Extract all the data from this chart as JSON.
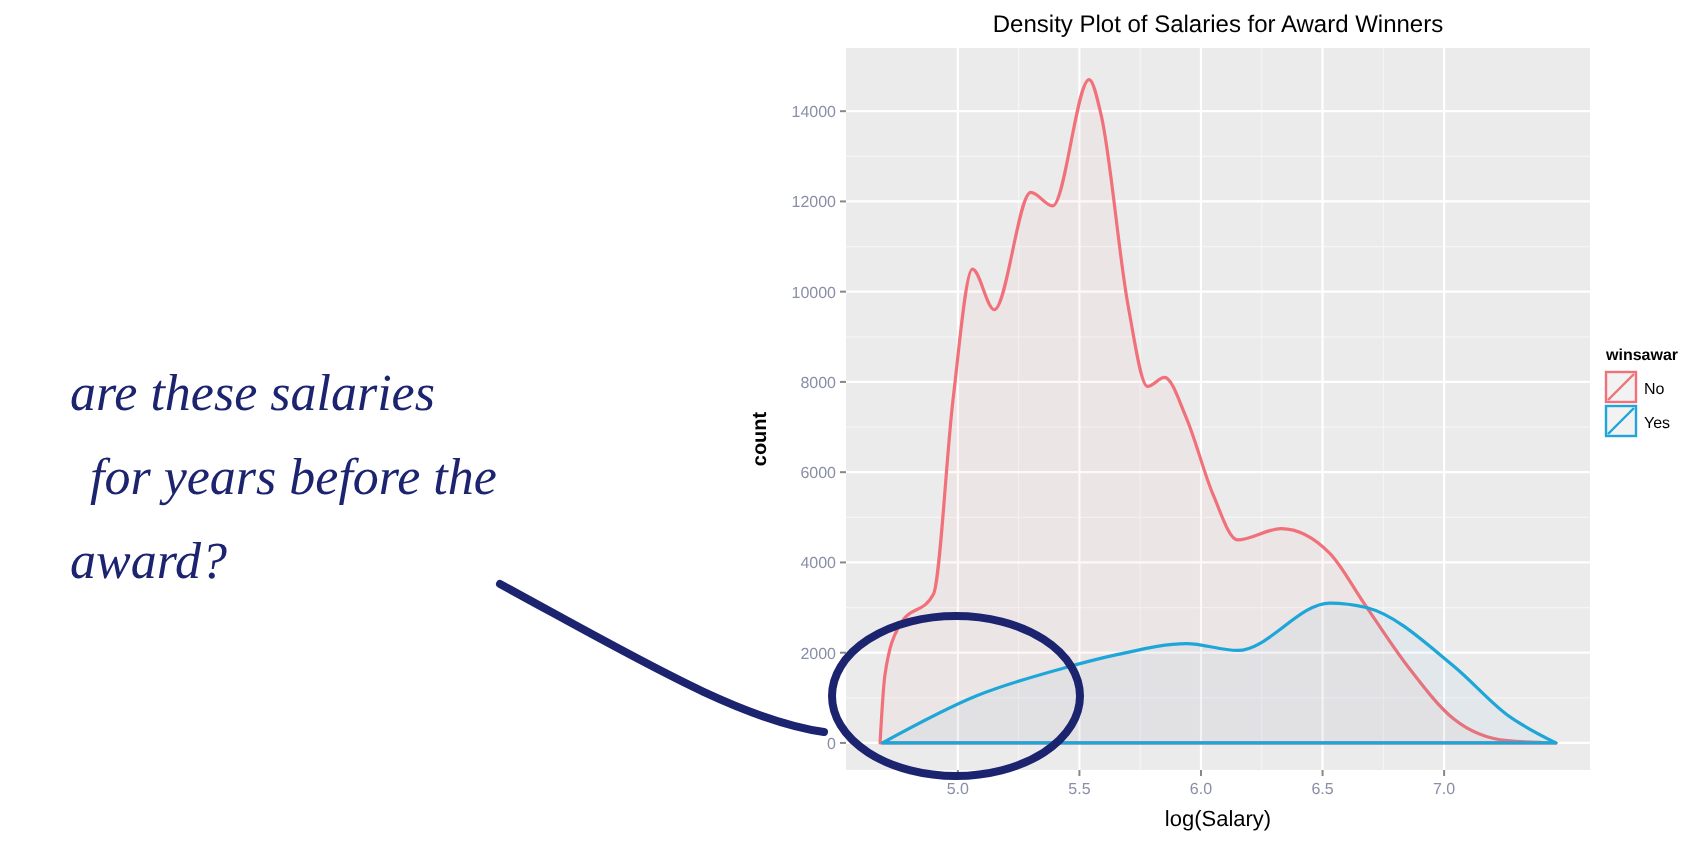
{
  "chart_data": {
    "type": "area",
    "title": "Density Plot of Salaries for Award Winners",
    "xlabel": "log(Salary)",
    "ylabel": "count",
    "legend_title": "winsawar",
    "xlim": [
      4.54,
      7.6
    ],
    "xticks": [
      {
        "value": 5,
        "label": "5.0"
      },
      {
        "value": 5.5,
        "label": "5.5"
      },
      {
        "value": 6,
        "label": "6.0"
      },
      {
        "value": 6.5,
        "label": "6.5"
      },
      {
        "value": 7,
        "label": "7.0"
      }
    ],
    "ylim": [
      -600,
      15400
    ],
    "yticks": [
      0,
      2000,
      4000,
      6000,
      8000,
      10000,
      12000,
      14000
    ],
    "grid": true,
    "legend": "right",
    "series": [
      {
        "name": "No",
        "color": "#f0717a",
        "x": [
          4.68,
          4.7,
          4.76,
          4.9,
          4.98,
          5.06,
          5.15,
          5.3,
          5.39,
          5.54,
          5.59,
          5.7,
          5.78,
          5.85,
          5.94,
          6.05,
          6.15,
          6.33,
          6.53,
          6.67,
          6.85,
          7.04,
          7.26,
          7.46
        ],
        "values": [
          0,
          1500,
          2600,
          3300,
          7600,
          10500,
          9600,
          12200,
          11900,
          14700,
          13900,
          9700,
          7900,
          8100,
          7200,
          5500,
          4500,
          4750,
          4200,
          3100,
          1700,
          530,
          50,
          0
        ]
      },
      {
        "name": "Yes",
        "color": "#1ea6d8",
        "x": [
          4.69,
          5.08,
          5.43,
          5.65,
          5.94,
          6.15,
          6.53,
          6.68,
          7.04,
          7.26,
          7.46
        ],
        "values": [
          0,
          1050,
          1650,
          1950,
          2200,
          2050,
          3100,
          3000,
          1700,
          620,
          0
        ]
      }
    ],
    "annotations": [
      "are these salaries for years before the award?"
    ]
  }
}
